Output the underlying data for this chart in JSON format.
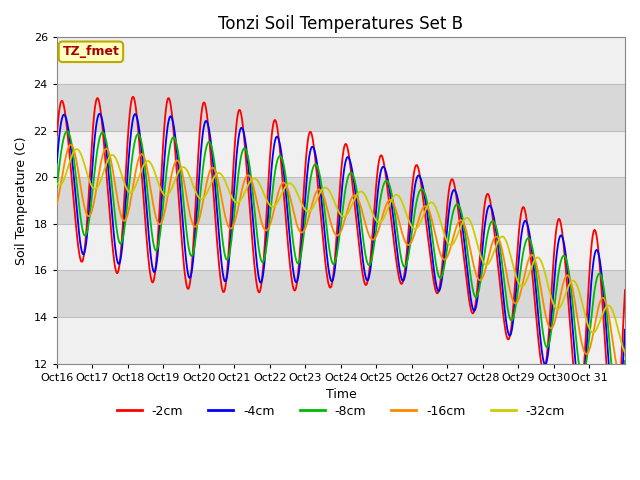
{
  "title": "Tonzi Soil Temperatures Set B",
  "xlabel": "Time",
  "ylabel": "Soil Temperature (C)",
  "xlim": [
    0,
    16
  ],
  "ylim": [
    12,
    26
  ],
  "yticks": [
    12,
    14,
    16,
    18,
    20,
    22,
    24,
    26
  ],
  "xtick_labels": [
    "Oct 16",
    "Oct 17",
    "Oct 18",
    "Oct 19",
    "Oct 20",
    "Oct 21",
    "Oct 22",
    "Oct 23",
    "Oct 24",
    "Oct 25",
    "Oct 26",
    "Oct 27",
    "Oct 28",
    "Oct 29",
    "Oct 30",
    "Oct 31"
  ],
  "annotation_text": "TZ_fmet",
  "series_colors": [
    "#ff0000",
    "#0000ff",
    "#00bb00",
    "#ff8800",
    "#cccc00"
  ],
  "series_labels": [
    "-2cm",
    "-4cm",
    "-8cm",
    "-16cm",
    "-32cm"
  ],
  "background_color": "#e8e8e8",
  "band_color_light": "#f0f0f0",
  "band_color_dark": "#d8d8d8",
  "grid_line_color": "#c0c0c0",
  "title_fontsize": 12,
  "label_fontsize": 9,
  "tick_fontsize": 8
}
